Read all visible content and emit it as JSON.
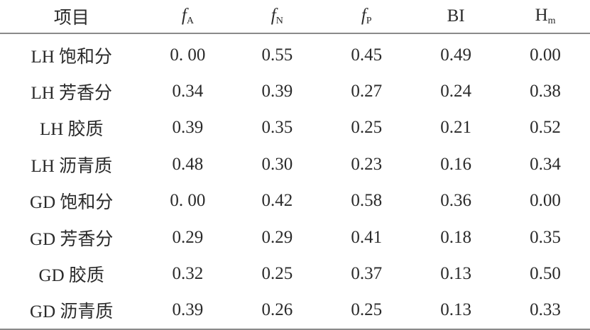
{
  "table": {
    "headers": [
      {
        "main": "项目",
        "sub": "",
        "italic": false
      },
      {
        "main": "f",
        "sub": "A",
        "italic": true
      },
      {
        "main": "f",
        "sub": "N",
        "italic": true
      },
      {
        "main": "f",
        "sub": "P",
        "italic": true
      },
      {
        "main": "BI",
        "sub": "",
        "italic": false
      },
      {
        "main": "H",
        "sub": "m",
        "italic": false
      }
    ],
    "rows": [
      [
        "LH 饱和分",
        "0. 00",
        "0.55",
        "0.45",
        "0.49",
        "0.00"
      ],
      [
        "LH 芳香分",
        "0.34",
        "0.39",
        "0.27",
        "0.24",
        "0.38"
      ],
      [
        "LH 胶质",
        "0.39",
        "0.35",
        "0.25",
        "0.21",
        "0.52"
      ],
      [
        "LH 沥青质",
        "0.48",
        "0.30",
        "0.23",
        "0.16",
        "0.34"
      ],
      [
        "GD 饱和分",
        "0. 00",
        "0.42",
        "0.58",
        "0.36",
        "0.00"
      ],
      [
        "GD 芳香分",
        "0.29",
        "0.29",
        "0.41",
        "0.18",
        "0.35"
      ],
      [
        "GD 胶质",
        "0.32",
        "0.25",
        "0.37",
        "0.13",
        "0.50"
      ],
      [
        "GD 沥青质",
        "0.39",
        "0.26",
        "0.25",
        "0.13",
        "0.33"
      ]
    ]
  }
}
